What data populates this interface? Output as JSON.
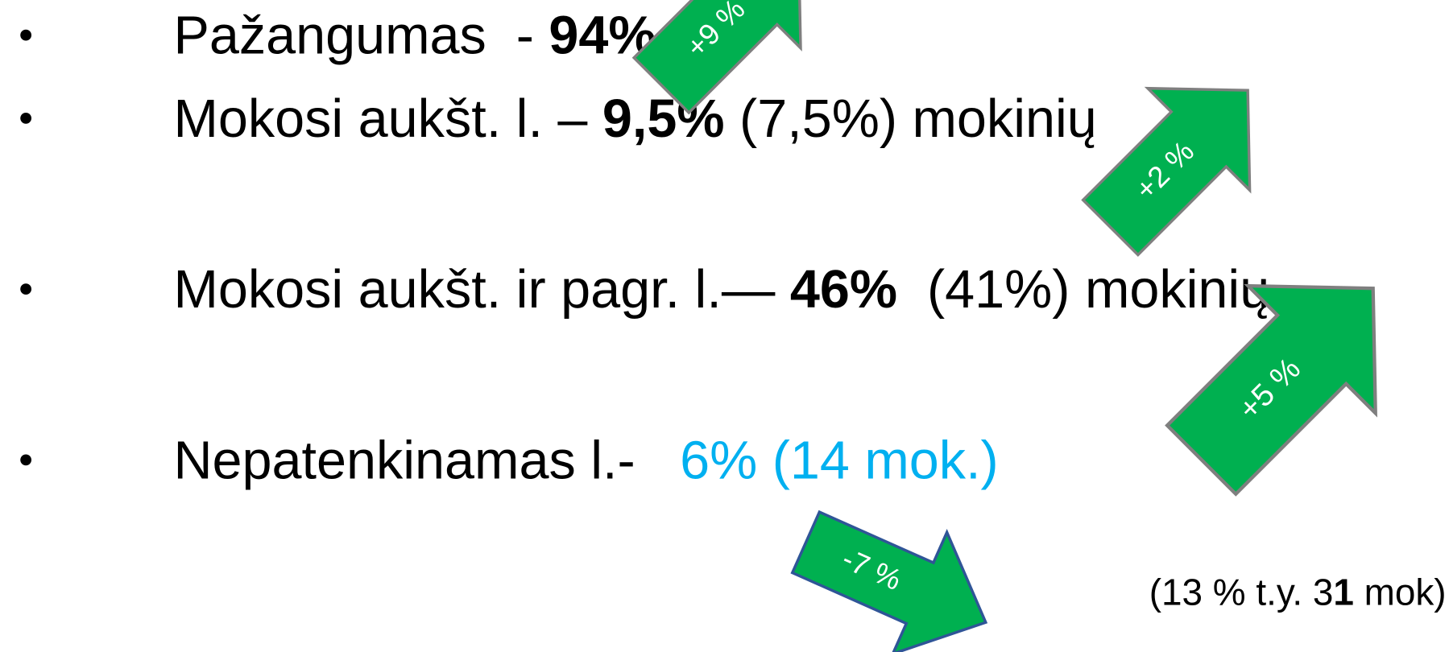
{
  "bullets": [
    {
      "label": "Pažangumas  - ",
      "value": "94%"
    },
    {
      "label": "Mokosi aukšt. l. – ",
      "value": "9,5%",
      "previous": " (7,5%) ",
      "suffix": "mokinių"
    },
    {
      "label": "Mokosi aukšt. ir pagr. l.— ",
      "value": "46%",
      "previous": "  (41%) ",
      "suffix": "mokinių"
    },
    {
      "label": "Nepatenkinamas l.-   ",
      "value": "6% (14 mok.)"
    }
  ],
  "arrows": [
    {
      "label": "+9 %"
    },
    {
      "label": "+2 %"
    },
    {
      "label": "+5 %"
    },
    {
      "label": "-7 %"
    }
  ],
  "note": {
    "before": "(13 % t.y. 3",
    "bold": "1",
    "after": " mok)"
  }
}
